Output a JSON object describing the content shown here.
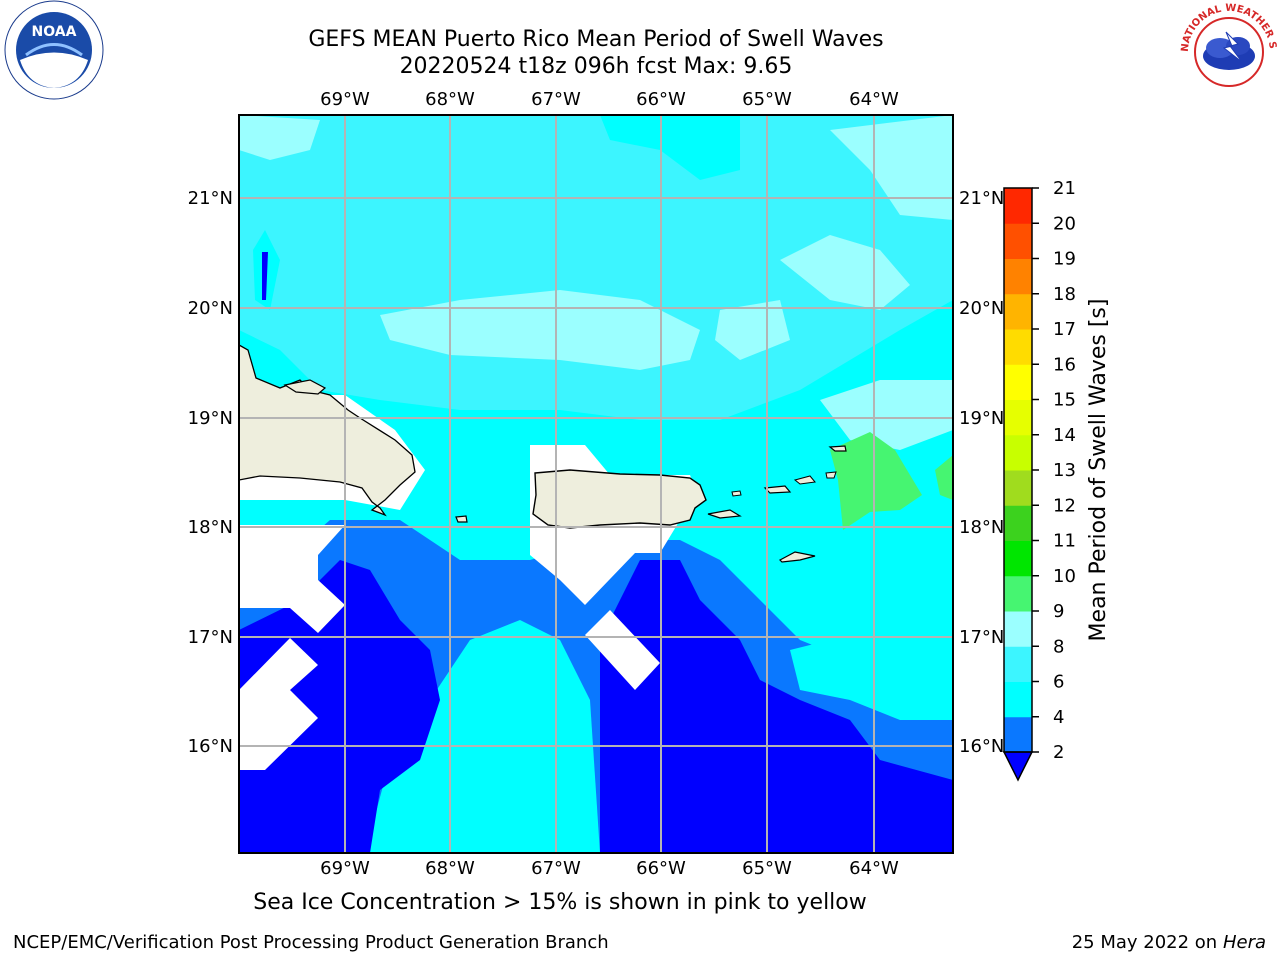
{
  "header": {
    "title_line1": "GEFS MEAN Puerto Rico Mean Period of Swell Waves",
    "title_line2": "20220524 t18z 096h fcst   Max: 9.65"
  },
  "logos": {
    "left": {
      "icon": "noaa-logo-icon",
      "text": "NOAA"
    },
    "right": {
      "icon": "nws-logo-icon",
      "text": "NATIONAL WEATHER SERVICE"
    }
  },
  "map": {
    "lon_labels": [
      "69°W",
      "68°W",
      "67°W",
      "66°W",
      "65°W",
      "64°W"
    ],
    "lat_labels": [
      "21°N",
      "20°N",
      "19°N",
      "18°N",
      "17°N",
      "16°N"
    ],
    "colors": {
      "land": "#eeeedd",
      "band_2_4": "#0000ff",
      "band_4_6": "#0a78ff",
      "band_6_8": "#00ffff",
      "band_8_9": "#3cf5ff",
      "band_9_10": "#9bffff",
      "band_10_11": "#46f571",
      "grid": "#b4b4b4"
    }
  },
  "colorbar": {
    "label": "Mean Period of Swell Waves [s]",
    "ticks": [
      "2",
      "4",
      "6",
      "8",
      "9",
      "10",
      "11",
      "12",
      "13",
      "14",
      "15",
      "16",
      "17",
      "18",
      "19",
      "20",
      "21"
    ],
    "colors": [
      "#0a78ff",
      "#00ffff",
      "#3cf5ff",
      "#9bffff",
      "#46f571",
      "#00e600",
      "#3cd21e",
      "#a0dc1e",
      "#c8ff00",
      "#e6ff00",
      "#ffff00",
      "#ffdc00",
      "#ffb400",
      "#ff8200",
      "#ff5000",
      "#ff2800",
      "#ff0000"
    ],
    "under_color": "#0000ff"
  },
  "caption": "Sea Ice Concentration > 15% is shown in pink to yellow",
  "footer": {
    "left": "NCEP/EMC/Verification Post Processing Product Generation Branch",
    "date": "25 May 2022 on",
    "host": "Hera"
  }
}
